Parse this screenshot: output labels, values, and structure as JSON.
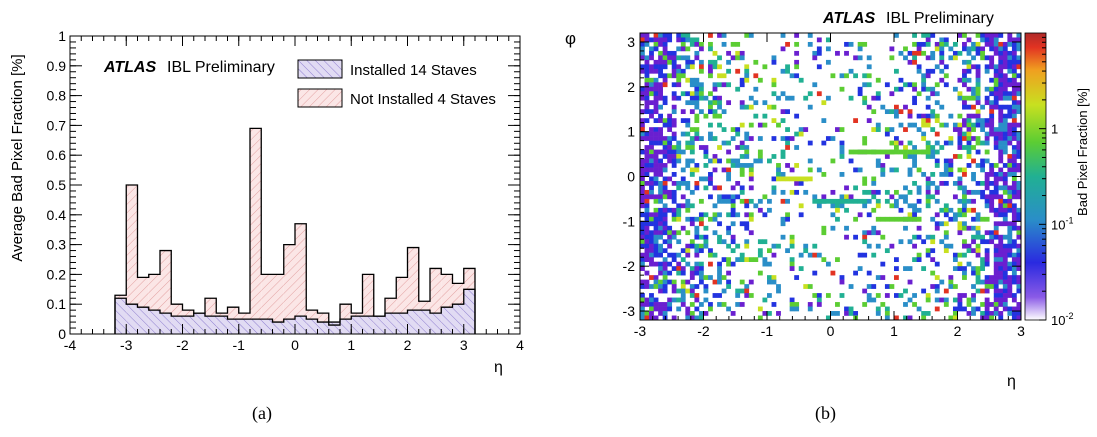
{
  "captions": [
    "(a)",
    "(b)"
  ],
  "chart_data": [
    {
      "type": "bar",
      "subtype": "stacked-step-histogram",
      "experiment_label": "ATLAS",
      "preliminary_label": "IBL Preliminary",
      "xlabel": "η",
      "ylabel": "Average Bad Pixel Fraction [%]",
      "xlim": [
        -4,
        4
      ],
      "ylim": [
        0,
        1
      ],
      "x_ticks": [
        "-4",
        "-3",
        "-2",
        "-1",
        "0",
        "1",
        "2",
        "3",
        "4"
      ],
      "y_ticks": [
        "0",
        "0.1",
        "0.2",
        "0.3",
        "0.4",
        "0.5",
        "0.6",
        "0.7",
        "0.8",
        "0.9",
        "1"
      ],
      "legend_position": "top-right",
      "bin_edges": [
        -3.2,
        -3.0,
        -2.8,
        -2.6,
        -2.4,
        -2.2,
        -2.0,
        -1.8,
        -1.6,
        -1.4,
        -1.2,
        -1.0,
        -0.8,
        -0.6,
        -0.4,
        -0.2,
        0.0,
        0.2,
        0.4,
        0.6,
        0.8,
        1.0,
        1.2,
        1.4,
        1.6,
        1.8,
        2.0,
        2.2,
        2.4,
        2.6,
        2.8,
        3.0,
        3.2
      ],
      "series": [
        {
          "name": "Installed 14 Staves",
          "color": "#7b68c8",
          "fill": "#d6cfee",
          "values": [
            0.12,
            0.1,
            0.09,
            0.08,
            0.07,
            0.06,
            0.06,
            0.07,
            0.06,
            0.06,
            0.05,
            0.05,
            0.05,
            0.05,
            0.04,
            0.05,
            0.06,
            0.05,
            0.04,
            0.04,
            0.05,
            0.06,
            0.06,
            0.06,
            0.07,
            0.07,
            0.08,
            0.08,
            0.07,
            0.09,
            0.1,
            0.15
          ]
        },
        {
          "name": "Not Installed 4 Staves",
          "color": "#d88080",
          "fill": "#f8e0e0",
          "stacked_total": [
            0.13,
            0.5,
            0.19,
            0.2,
            0.28,
            0.1,
            0.08,
            0.07,
            0.12,
            0.07,
            0.09,
            0.07,
            0.69,
            0.2,
            0.2,
            0.3,
            0.37,
            0.08,
            0.07,
            0.03,
            0.1,
            0.07,
            0.2,
            0.06,
            0.12,
            0.19,
            0.29,
            0.11,
            0.22,
            0.2,
            0.17,
            0.22
          ]
        }
      ]
    },
    {
      "type": "heatmap",
      "experiment_label": "ATLAS",
      "preliminary_label": "IBL Preliminary",
      "xlabel": "η",
      "ylabel": "φ",
      "xlim": [
        -3,
        3
      ],
      "ylim": [
        -3.2,
        3.2
      ],
      "x_ticks": [
        "-3",
        "-2",
        "-1",
        "0",
        "1",
        "2",
        "3"
      ],
      "y_ticks": [
        "-3",
        "-2",
        "-1",
        "0",
        "1",
        "2",
        "3"
      ],
      "colorbar_label": "Bad Pixel Fraction [%]",
      "colorbar_scale": "log",
      "colorbar_range": [
        0.01,
        10
      ],
      "colorbar_ticks": [
        {
          "base": "1",
          "exp": ""
        },
        {
          "base": "10",
          "exp": "-1"
        },
        {
          "base": "10",
          "exp": "-2"
        }
      ],
      "grid_bins": [
        84,
        64
      ],
      "colormap": [
        "#ffffff",
        "#6a1fd0",
        "#2233e0",
        "#2a8ec8",
        "#21b093",
        "#5ccd33",
        "#c8e020",
        "#f0a020",
        "#e23322",
        "#b02a2a"
      ]
    }
  ]
}
